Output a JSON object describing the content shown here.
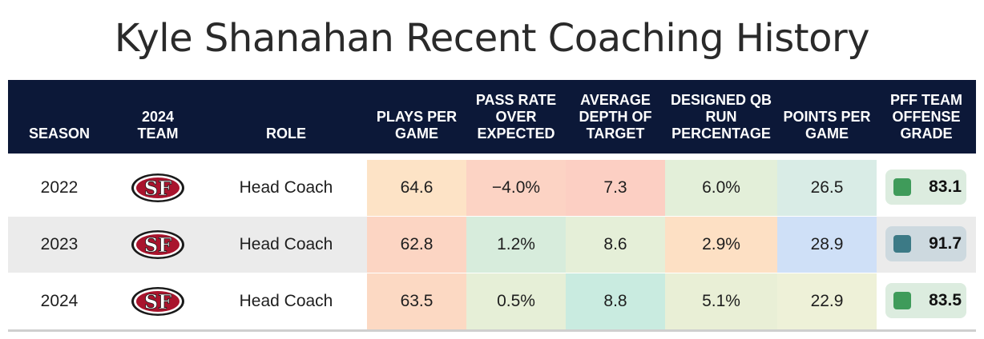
{
  "title": "Kyle Shanahan Recent Coaching History",
  "headers": {
    "season": "SEASON",
    "team": "2024 TEAM",
    "role": "ROLE",
    "plays": "PLAYS PER GAME",
    "proe": "PASS RATE OVER EXPECTED",
    "adot": "AVERAGE DEPTH OF TARGET",
    "qbrun": "DESIGNED QB RUN PERCENTAGE",
    "ppg": "POINTS PER GAME",
    "pff": "PFF TEAM OFFENSE GRADE"
  },
  "rows": [
    {
      "season": "2022",
      "team_logo": "49ers-logo-icon",
      "team_logo_text": "SF",
      "role": "Head Coach",
      "plays": "64.6",
      "proe": "−4.0%",
      "adot": "7.3",
      "qbrun": "6.0%",
      "ppg": "26.5",
      "pff": "83.1",
      "colors": {
        "row": "#ffffff",
        "plays": "#fde3c6",
        "proe": "#fcd3c4",
        "adot": "#fccfc3",
        "qbrun": "#e3efd9",
        "ppg": "#d9ece6",
        "pff_bg": "#dcecdf",
        "pff_sq": "#3f9b5a"
      }
    },
    {
      "season": "2023",
      "team_logo": "49ers-logo-icon",
      "team_logo_text": "SF",
      "role": "Head Coach",
      "plays": "62.8",
      "proe": "1.2%",
      "adot": "8.6",
      "qbrun": "2.9%",
      "ppg": "28.9",
      "pff": "91.7",
      "colors": {
        "row": "#ebebeb",
        "plays": "#fcd5c3",
        "proe": "#d7ecdc",
        "adot": "#e5efd8",
        "qbrun": "#fde0c4",
        "ppg": "#cfe0f7",
        "pff_bg": "#cdd9df",
        "pff_sq": "#3c7a86"
      }
    },
    {
      "season": "2024",
      "team_logo": "49ers-logo-icon",
      "team_logo_text": "SF",
      "role": "Head Coach",
      "plays": "63.5",
      "proe": "0.5%",
      "adot": "8.8",
      "qbrun": "5.1%",
      "ppg": "22.9",
      "pff": "83.5",
      "colors": {
        "row": "#ffffff",
        "plays": "#fcd9c3",
        "proe": "#e6efd7",
        "adot": "#c9ebe0",
        "qbrun": "#e9efd6",
        "ppg": "#eef1d8",
        "pff_bg": "#dcecdf",
        "pff_sq": "#3f9b5a"
      }
    }
  ]
}
